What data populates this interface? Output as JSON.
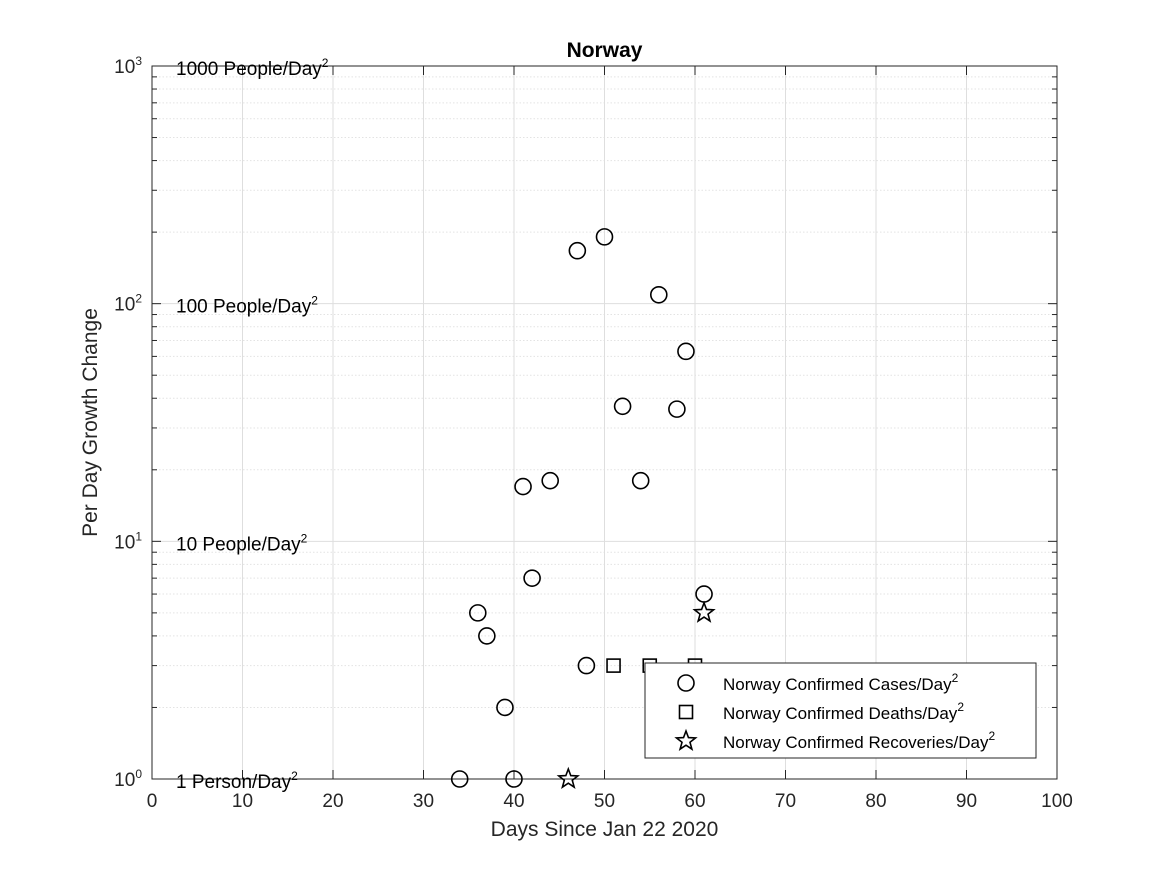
{
  "chart_data": {
    "type": "scatter",
    "title": "Norway",
    "xlabel": "Days Since Jan 22 2020",
    "ylabel": "Per Day Growth Change",
    "xlim": [
      0,
      100
    ],
    "ylim": [
      1,
      1000
    ],
    "yscale": "log",
    "grid": true,
    "minor_grid": true,
    "legend_position": "bottom-right",
    "x_ticks": [
      0,
      10,
      20,
      30,
      40,
      50,
      60,
      70,
      80,
      90,
      100
    ],
    "y_ticks": [
      {
        "value": 1,
        "base": "10",
        "exp": "0"
      },
      {
        "value": 10,
        "base": "10",
        "exp": "1"
      },
      {
        "value": 100,
        "base": "10",
        "exp": "2"
      },
      {
        "value": 1000,
        "base": "10",
        "exp": "3"
      }
    ],
    "annotations": [
      {
        "y": 1000,
        "text": "1000 People/Day",
        "sup": "2"
      },
      {
        "y": 100,
        "text": "100 People/Day",
        "sup": "2"
      },
      {
        "y": 10,
        "text": "10 People/Day",
        "sup": "2"
      },
      {
        "y": 1,
        "text": "1 Person/Day",
        "sup": "2"
      }
    ],
    "series": [
      {
        "name": "Norway Confirmed Cases/Day",
        "name_sup": "2",
        "marker": "circle",
        "points": [
          {
            "x": 34,
            "y": 1
          },
          {
            "x": 36,
            "y": 5
          },
          {
            "x": 37,
            "y": 4
          },
          {
            "x": 39,
            "y": 2
          },
          {
            "x": 40,
            "y": 1
          },
          {
            "x": 41,
            "y": 17
          },
          {
            "x": 42,
            "y": 7
          },
          {
            "x": 44,
            "y": 18
          },
          {
            "x": 47,
            "y": 167
          },
          {
            "x": 48,
            "y": 3
          },
          {
            "x": 50,
            "y": 191
          },
          {
            "x": 52,
            "y": 37
          },
          {
            "x": 54,
            "y": 18
          },
          {
            "x": 56,
            "y": 109
          },
          {
            "x": 58,
            "y": 36
          },
          {
            "x": 59,
            "y": 63
          },
          {
            "x": 61,
            "y": 6
          }
        ]
      },
      {
        "name": "Norway Confirmed Deaths/Day",
        "name_sup": "2",
        "marker": "square",
        "points": [
          {
            "x": 51,
            "y": 3
          },
          {
            "x": 55,
            "y": 3
          },
          {
            "x": 60,
            "y": 3
          }
        ]
      },
      {
        "name": "Norway Confirmed Recoveries/Day",
        "name_sup": "2",
        "marker": "star",
        "points": [
          {
            "x": 46,
            "y": 1
          },
          {
            "x": 61,
            "y": 5
          }
        ]
      }
    ]
  }
}
